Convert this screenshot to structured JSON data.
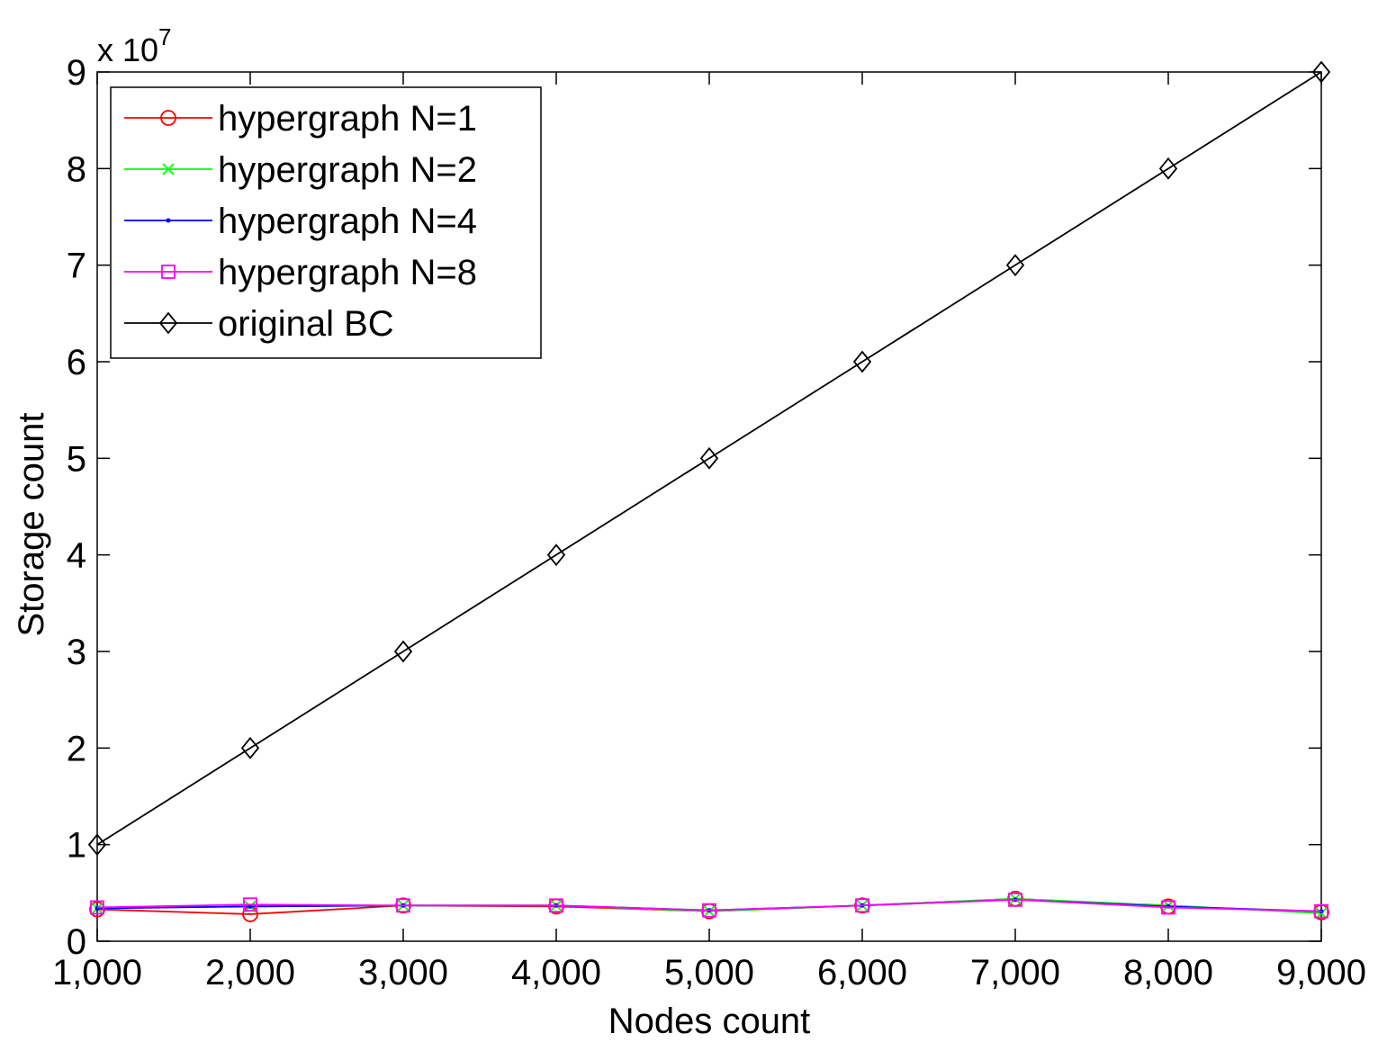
{
  "chart_data": {
    "type": "line",
    "xlabel": "Nodes count",
    "ylabel": "Storage count",
    "y_exponent_base": "x 10",
    "y_exponent_power": "7",
    "xlim": [
      1000,
      9000
    ],
    "ylim": [
      0,
      90000000
    ],
    "x_ticks": [
      1000,
      2000,
      3000,
      4000,
      5000,
      6000,
      7000,
      8000,
      9000
    ],
    "x_tick_labels": [
      "1,000",
      "2,000",
      "3,000",
      "4,000",
      "5,000",
      "6,000",
      "7,000",
      "8,000",
      "9,000"
    ],
    "y_ticks": [
      0,
      10000000,
      20000000,
      30000000,
      40000000,
      50000000,
      60000000,
      70000000,
      80000000,
      90000000
    ],
    "y_tick_labels": [
      "0",
      "1",
      "2",
      "3",
      "4",
      "5",
      "6",
      "7",
      "8",
      "9"
    ],
    "grid": false,
    "legend_position": "top-left",
    "x": [
      1000,
      2000,
      3000,
      4000,
      5000,
      6000,
      7000,
      8000,
      9000
    ],
    "series": [
      {
        "name": "hypergraph N=1",
        "color": "#ff0000",
        "marker": "circle",
        "values": [
          3300000,
          2800000,
          3700000,
          3600000,
          3100000,
          3700000,
          4400000,
          3600000,
          3000000
        ]
      },
      {
        "name": "hypergraph N=2",
        "color": "#00ff00",
        "marker": "x",
        "values": [
          3400000,
          3600000,
          3700000,
          3700000,
          3100000,
          3700000,
          4400000,
          3700000,
          2900000
        ]
      },
      {
        "name": "hypergraph N=4",
        "color": "#0000ff",
        "marker": "point",
        "values": [
          3400000,
          3600000,
          3700000,
          3700000,
          3200000,
          3700000,
          4300000,
          3600000,
          3100000
        ]
      },
      {
        "name": "hypergraph N=8",
        "color": "#ff00ff",
        "marker": "square",
        "values": [
          3500000,
          3800000,
          3700000,
          3700000,
          3200000,
          3700000,
          4300000,
          3500000,
          3100000
        ]
      },
      {
        "name": "original BC",
        "color": "#000000",
        "marker": "diamond",
        "values": [
          10000000,
          20000000,
          30000000,
          40000000,
          50000000,
          60000000,
          70000000,
          80000000,
          90000000
        ]
      }
    ]
  }
}
